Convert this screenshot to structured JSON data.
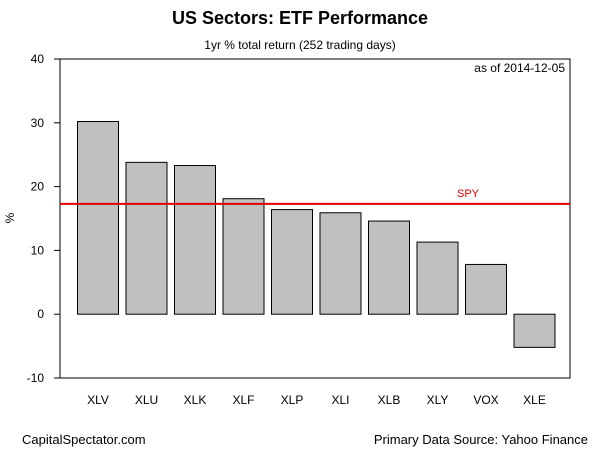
{
  "chart_data": {
    "type": "bar",
    "title": "US Sectors: ETF Performance",
    "subtitle": "1yr % total return (252 trading days)",
    "ylabel": "%",
    "xlabel": "",
    "annotation": "as of  2014-12-05",
    "categories": [
      "XLV",
      "XLU",
      "XLK",
      "XLF",
      "XLP",
      "XLI",
      "XLB",
      "XLY",
      "VOX",
      "XLE"
    ],
    "values": [
      30.2,
      23.8,
      23.3,
      18.1,
      16.4,
      15.9,
      14.6,
      11.3,
      7.8,
      -5.2
    ],
    "ylim": [
      -10,
      40
    ],
    "yticks": [
      -10,
      0,
      10,
      20,
      30,
      40
    ],
    "bar_color": "#c0c0c0",
    "reference_line": {
      "label": "SPY",
      "value": 17.3,
      "color": "#e00000"
    },
    "grid": false
  },
  "footer": {
    "left": "CapitalSpectator.com",
    "right": "Primary Data Source: Yahoo Finance"
  }
}
